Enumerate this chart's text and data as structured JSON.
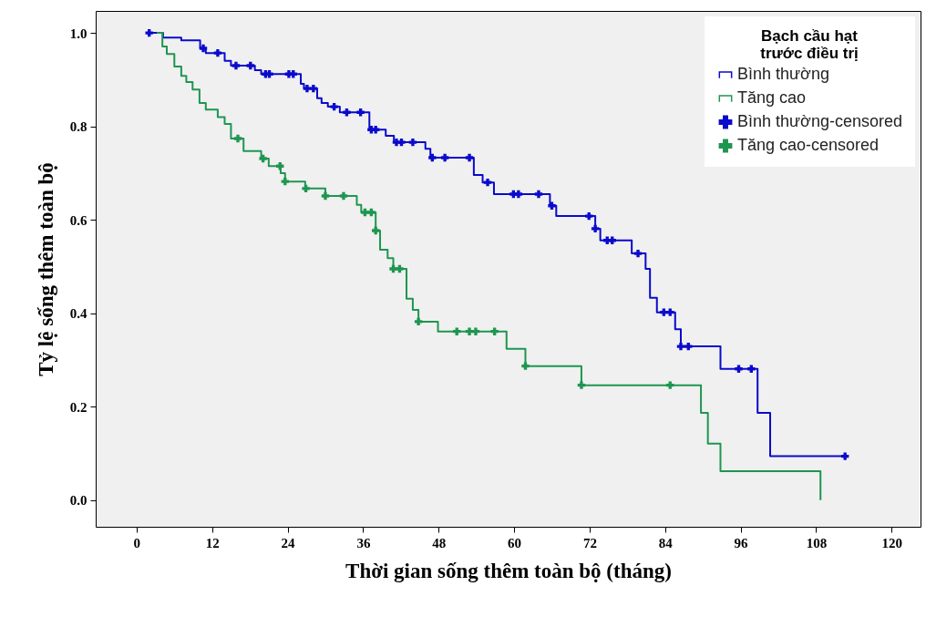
{
  "chart_data": {
    "type": "step",
    "xlabel": "Thời gian sống thêm toàn bộ (tháng)",
    "ylabel": "Tỷ lệ sống thêm toàn bộ",
    "legend_title": "Bạch cầu hạt\ntrước điều trị",
    "legend": "top right",
    "xlim": [
      -6.5,
      124.6
    ],
    "xticks": [
      0,
      12,
      24,
      36,
      48,
      60,
      72,
      84,
      96,
      108,
      120
    ],
    "ylim": [
      -0.057,
      1.047
    ],
    "yticks": [
      {
        "value": 0,
        "label": "0.0"
      },
      0.2,
      0.4,
      0.6,
      0.8,
      {
        "value": 1,
        "label": "1.0"
      }
    ],
    "series": [
      {
        "name": "Bình thường",
        "color": "#0a0acc",
        "x": [
          2,
          4.2,
          7.1,
          10.1,
          11,
          14,
          15,
          18.8,
          19.8,
          26.1,
          26.6,
          28.7,
          29.4,
          30.4,
          32.3,
          37,
          39.6,
          40.9,
          45.9,
          46.7,
          53.6,
          55,
          56.8,
          65.7,
          66.7,
          72.9,
          73.7,
          78.7,
          80.9,
          81.6,
          82.7,
          85.6,
          86.5,
          92.8,
          98.7,
          100.7,
          112.6
        ],
        "values": [
          1.0,
          0.99,
          0.984,
          0.967,
          0.957,
          0.94,
          0.93,
          0.92,
          0.912,
          0.891,
          0.881,
          0.86,
          0.85,
          0.842,
          0.83,
          0.793,
          0.78,
          0.766,
          0.752,
          0.733,
          0.696,
          0.68,
          0.655,
          0.63,
          0.608,
          0.581,
          0.556,
          0.528,
          0.495,
          0.433,
          0.402,
          0.366,
          0.329,
          0.281,
          0.187,
          0.094,
          0.094
        ]
      },
      {
        "name": "Tăng cao",
        "color": "#1e9650",
        "x": [
          3.2,
          4.1,
          4.8,
          6,
          7.1,
          7.9,
          8.9,
          10,
          11,
          12.9,
          14,
          15,
          17,
          19.8,
          21,
          22.9,
          23.6,
          26.8,
          30,
          35,
          35.7,
          38,
          38.7,
          39.9,
          40.8,
          42.9,
          43.9,
          44.8,
          47.9,
          58.8,
          61.8,
          70.7,
          89.7,
          90.8,
          92.8,
          108.7
        ],
        "values": [
          1.0,
          0.971,
          0.955,
          0.928,
          0.908,
          0.895,
          0.879,
          0.85,
          0.836,
          0.82,
          0.805,
          0.774,
          0.747,
          0.731,
          0.715,
          0.7,
          0.682,
          0.667,
          0.651,
          0.632,
          0.616,
          0.577,
          0.536,
          0.518,
          0.495,
          0.431,
          0.407,
          0.382,
          0.361,
          0.324,
          0.287,
          0.246,
          0.187,
          0.121,
          0.062,
          0
        ]
      },
      {
        "name": "Bình thường-censored",
        "type": "scatter",
        "marker": "cross",
        "color": "#0a0acc",
        "x": [
          2,
          10.6,
          12.9,
          15.8,
          18.1,
          20.5,
          21.1,
          24.2,
          24.9,
          27.1,
          28.1,
          31.4,
          33.4,
          35.6,
          37.3,
          38.0,
          41.3,
          42.1,
          43.9,
          47.0,
          49.0,
          52.9,
          55.8,
          59.9,
          60.7,
          63.9,
          66.0,
          71.9,
          72.9,
          74.8,
          75.6,
          79.7,
          83.8,
          84.8,
          86.5,
          87.7,
          95.7,
          97.7,
          112.6
        ],
        "values": [
          1.0,
          0.967,
          0.957,
          0.93,
          0.93,
          0.912,
          0.912,
          0.912,
          0.912,
          0.881,
          0.881,
          0.842,
          0.83,
          0.83,
          0.793,
          0.793,
          0.766,
          0.766,
          0.766,
          0.733,
          0.733,
          0.733,
          0.68,
          0.655,
          0.655,
          0.655,
          0.63,
          0.608,
          0.581,
          0.556,
          0.556,
          0.528,
          0.402,
          0.402,
          0.329,
          0.329,
          0.281,
          0.281,
          0.094
        ]
      },
      {
        "name": "Tăng cao-censored",
        "type": "scatter",
        "marker": "cross",
        "color": "#1e9650",
        "x": [
          16.1,
          20.1,
          22.8,
          23.6,
          26.9,
          30.0,
          32.9,
          36.3,
          37.3,
          38.0,
          40.8,
          41.8,
          44.8,
          50.9,
          52.9,
          53.9,
          56.9,
          61.8,
          70.7,
          84.8
        ],
        "values": [
          0.774,
          0.731,
          0.715,
          0.682,
          0.667,
          0.651,
          0.651,
          0.616,
          0.616,
          0.577,
          0.495,
          0.495,
          0.382,
          0.361,
          0.361,
          0.361,
          0.361,
          0.287,
          0.246,
          0.246
        ]
      }
    ]
  }
}
